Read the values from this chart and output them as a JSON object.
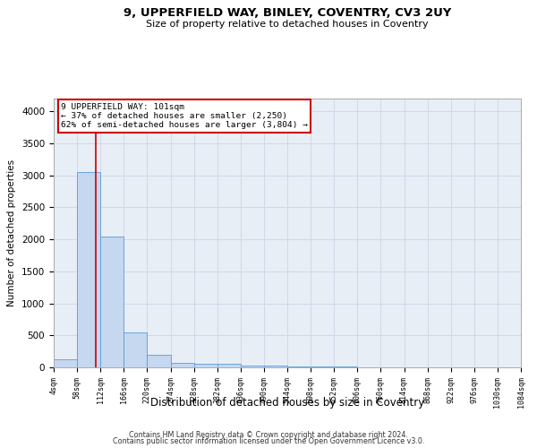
{
  "title1": "9, UPPERFIELD WAY, BINLEY, COVENTRY, CV3 2UY",
  "title2": "Size of property relative to detached houses in Coventry",
  "xlabel": "Distribution of detached houses by size in Coventry",
  "ylabel": "Number of detached properties",
  "footer1": "Contains HM Land Registry data © Crown copyright and database right 2024.",
  "footer2": "Contains public sector information licensed under the Open Government Licence v3.0.",
  "annotation_line1": "9 UPPERFIELD WAY: 101sqm",
  "annotation_line2": "← 37% of detached houses are smaller (2,250)",
  "annotation_line3": "62% of semi-detached houses are larger (3,804) →",
  "property_size": 101,
  "bin_edges": [
    4,
    58,
    112,
    166,
    220,
    274,
    328,
    382,
    436,
    490,
    544,
    598,
    652,
    706,
    760,
    814,
    868,
    922,
    976,
    1030,
    1084
  ],
  "bar_heights": [
    130,
    3050,
    2050,
    550,
    200,
    75,
    55,
    50,
    30,
    25,
    20,
    10,
    8,
    5,
    5,
    4,
    3,
    2,
    2,
    2
  ],
  "bar_color": "#c5d8f0",
  "bar_edge_color": "#5b9bd5",
  "vline_color": "#cc0000",
  "grid_color": "#d0d8e8",
  "bg_color": "#e8eef6",
  "annotation_box_color": "#cc0000",
  "ylim": [
    0,
    4200
  ],
  "yticks": [
    0,
    500,
    1000,
    1500,
    2000,
    2500,
    3000,
    3500,
    4000
  ]
}
